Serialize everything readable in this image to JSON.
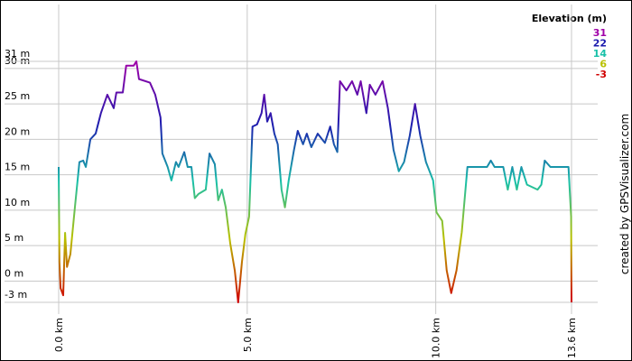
{
  "chart_data": {
    "type": "line",
    "legend_title": "Elevation (m)",
    "credit": "created by GPSVisualizer.com",
    "color_scale": [
      {
        "value": 31,
        "color": "#a000a8"
      },
      {
        "value": 22,
        "color": "#1c1cae"
      },
      {
        "value": 14,
        "color": "#18c0a8"
      },
      {
        "value": 6,
        "color": "#b8c000"
      },
      {
        "value": -3,
        "color": "#d00000"
      }
    ],
    "x": [
      0,
      0.02,
      0.05,
      0.12,
      0.17,
      0.22,
      0.31,
      0.43,
      0.55,
      0.65,
      0.72,
      0.84,
      0.98,
      1.12,
      1.29,
      1.46,
      1.53,
      1.7,
      1.79,
      1.99,
      2.06,
      2.13,
      2.42,
      2.56,
      2.7,
      2.75,
      2.89,
      2.99,
      3.11,
      3.18,
      3.33,
      3.42,
      3.52,
      3.61,
      3.71,
      3.9,
      4.0,
      4.14,
      4.23,
      4.33,
      4.43,
      4.55,
      4.67,
      4.76,
      4.86,
      4.95,
      5.05,
      5.14,
      5.26,
      5.38,
      5.45,
      5.53,
      5.62,
      5.72,
      5.81,
      5.91,
      6.0,
      6.1,
      6.24,
      6.34,
      6.48,
      6.58,
      6.7,
      6.87,
      7.06,
      7.2,
      7.3,
      7.39,
      7.46,
      7.63,
      7.78,
      7.92,
      8.01,
      8.16,
      8.25,
      8.4,
      8.59,
      8.73,
      8.88,
      9.02,
      9.16,
      9.31,
      9.45,
      9.59,
      9.74,
      9.93,
      10.02,
      10.17,
      10.29,
      10.41,
      10.55,
      10.69,
      10.84,
      11.12,
      11.36,
      11.46,
      11.56,
      11.79,
      11.91,
      12.03,
      12.15,
      12.27,
      12.42,
      12.7,
      12.8,
      12.89,
      13.04,
      13.52,
      13.59,
      13.6
    ],
    "values": [
      16.1,
      2.7,
      -1,
      -2,
      6.8,
      2,
      3.8,
      10.4,
      16.8,
      17,
      16.1,
      20,
      20.8,
      23.7,
      26.3,
      24.4,
      26.6,
      26.6,
      30.4,
      30.4,
      31,
      28.5,
      28,
      26.3,
      23.1,
      18,
      16.1,
      14.2,
      16.8,
      16.1,
      18.2,
      16.1,
      16.1,
      11.7,
      12.3,
      12.9,
      18,
      16.5,
      11.4,
      12.9,
      10.4,
      5.3,
      1.5,
      -3,
      2.7,
      6.6,
      9.1,
      21.8,
      22.1,
      23.7,
      26.3,
      22.5,
      23.7,
      20.8,
      19.3,
      12.9,
      10.4,
      14.2,
      18.5,
      21.2,
      19.3,
      20.8,
      18.9,
      20.8,
      19.5,
      21.8,
      19.3,
      18.2,
      28.2,
      26.9,
      28.2,
      26.3,
      28.2,
      23.7,
      27.7,
      26.3,
      28.2,
      24.4,
      18.5,
      15.5,
      16.8,
      20.5,
      25,
      20.5,
      16.8,
      14.2,
      9.7,
      8.5,
      1.5,
      -1.7,
      1.5,
      6.9,
      16.1,
      16.1,
      16.1,
      17,
      16.1,
      16.1,
      12.9,
      16.1,
      12.9,
      16.1,
      13.6,
      12.9,
      13.6,
      17,
      16.1,
      16.1,
      9.1,
      -3
    ],
    "xlim": [
      0,
      13.6
    ],
    "xticks": [
      {
        "value": 0,
        "label": "0.0 km"
      },
      {
        "value": 5,
        "label": "5.0 km"
      },
      {
        "value": 10,
        "label": "10.0 km"
      },
      {
        "value": 13.6,
        "label": "13.6 km"
      }
    ],
    "ylim": [
      -3,
      31
    ],
    "yticks": [
      {
        "value": -3,
        "label": "-3 m"
      },
      {
        "value": 0,
        "label": "0 m"
      },
      {
        "value": 5,
        "label": "5 m"
      },
      {
        "value": 10,
        "label": "10 m"
      },
      {
        "value": 15,
        "label": "15 m"
      },
      {
        "value": 20,
        "label": "20 m"
      },
      {
        "value": 25,
        "label": "25 m"
      },
      {
        "value": 30,
        "label": "30 m"
      },
      {
        "value": 31,
        "label": "31 m"
      }
    ],
    "grid": true
  }
}
